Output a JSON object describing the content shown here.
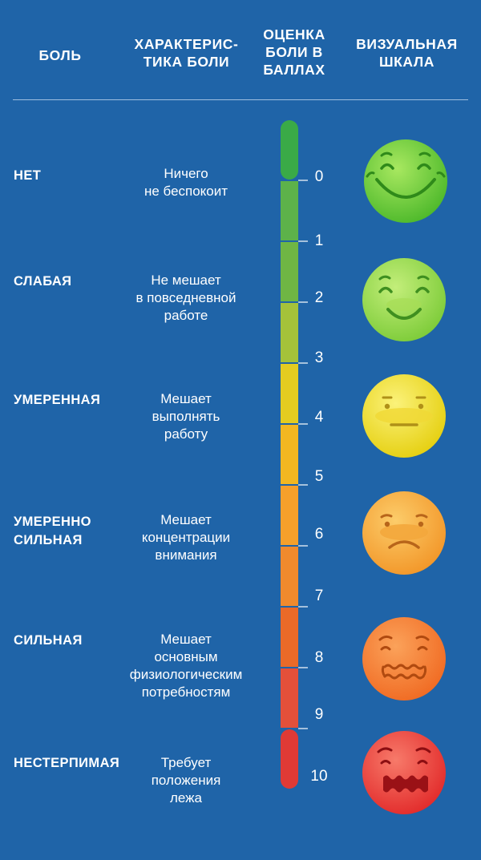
{
  "header": {
    "pain": "БОЛЬ",
    "characteristic": "ХАРАКТЕРИС-\nТИКА БОЛИ",
    "score": "ОЦЕНКА\nБОЛИ В\nБАЛЛАХ",
    "visual": "ВИЗУАЛЬНАЯ\nШКАЛА"
  },
  "rows": [
    {
      "level": "НЕТ",
      "description": "Ничего\nне беспокоит",
      "face": "very-happy-face"
    },
    {
      "level": "СЛАБАЯ",
      "description": "Не мешает\nв повседневной\nработе",
      "face": "happy-face"
    },
    {
      "level": "УМЕРЕННАЯ",
      "description": "Мешает\nвыполнять\nработу",
      "face": "neutral-face"
    },
    {
      "level": "УМЕРЕННО\nСИЛЬНАЯ",
      "description": "Мешает\nконцентрации\nвнимания",
      "face": "sad-face"
    },
    {
      "level": "СИЛЬНАЯ",
      "description": "Мешает\nосновным\nфизиологическим\nпотребностям",
      "face": "distressed-face"
    },
    {
      "level": "НЕСТЕРПИМАЯ",
      "description": "Требует\nположения\nлежа",
      "face": "agony-face"
    }
  ],
  "scale": {
    "labels": [
      "0",
      "1",
      "2",
      "3",
      "4",
      "5",
      "6",
      "7",
      "8",
      "9",
      "10"
    ],
    "segment_colors": [
      "#3aaa47",
      "#5db24a",
      "#6fb644",
      "#a5c23a",
      "#e4cc20",
      "#f2b721",
      "#f5a02b",
      "#f08a2d",
      "#ea6a28",
      "#e3503a",
      "#e03a35"
    ]
  },
  "colors": {
    "background": "#1f64a8",
    "text": "#ffffff",
    "face_green": "#6fcf3a",
    "face_light_green": "#95d64a",
    "face_yellow": "#f2e22a",
    "face_orange": "#f7a83a",
    "face_deep_orange": "#f57f2c",
    "face_red": "#ec3535"
  }
}
